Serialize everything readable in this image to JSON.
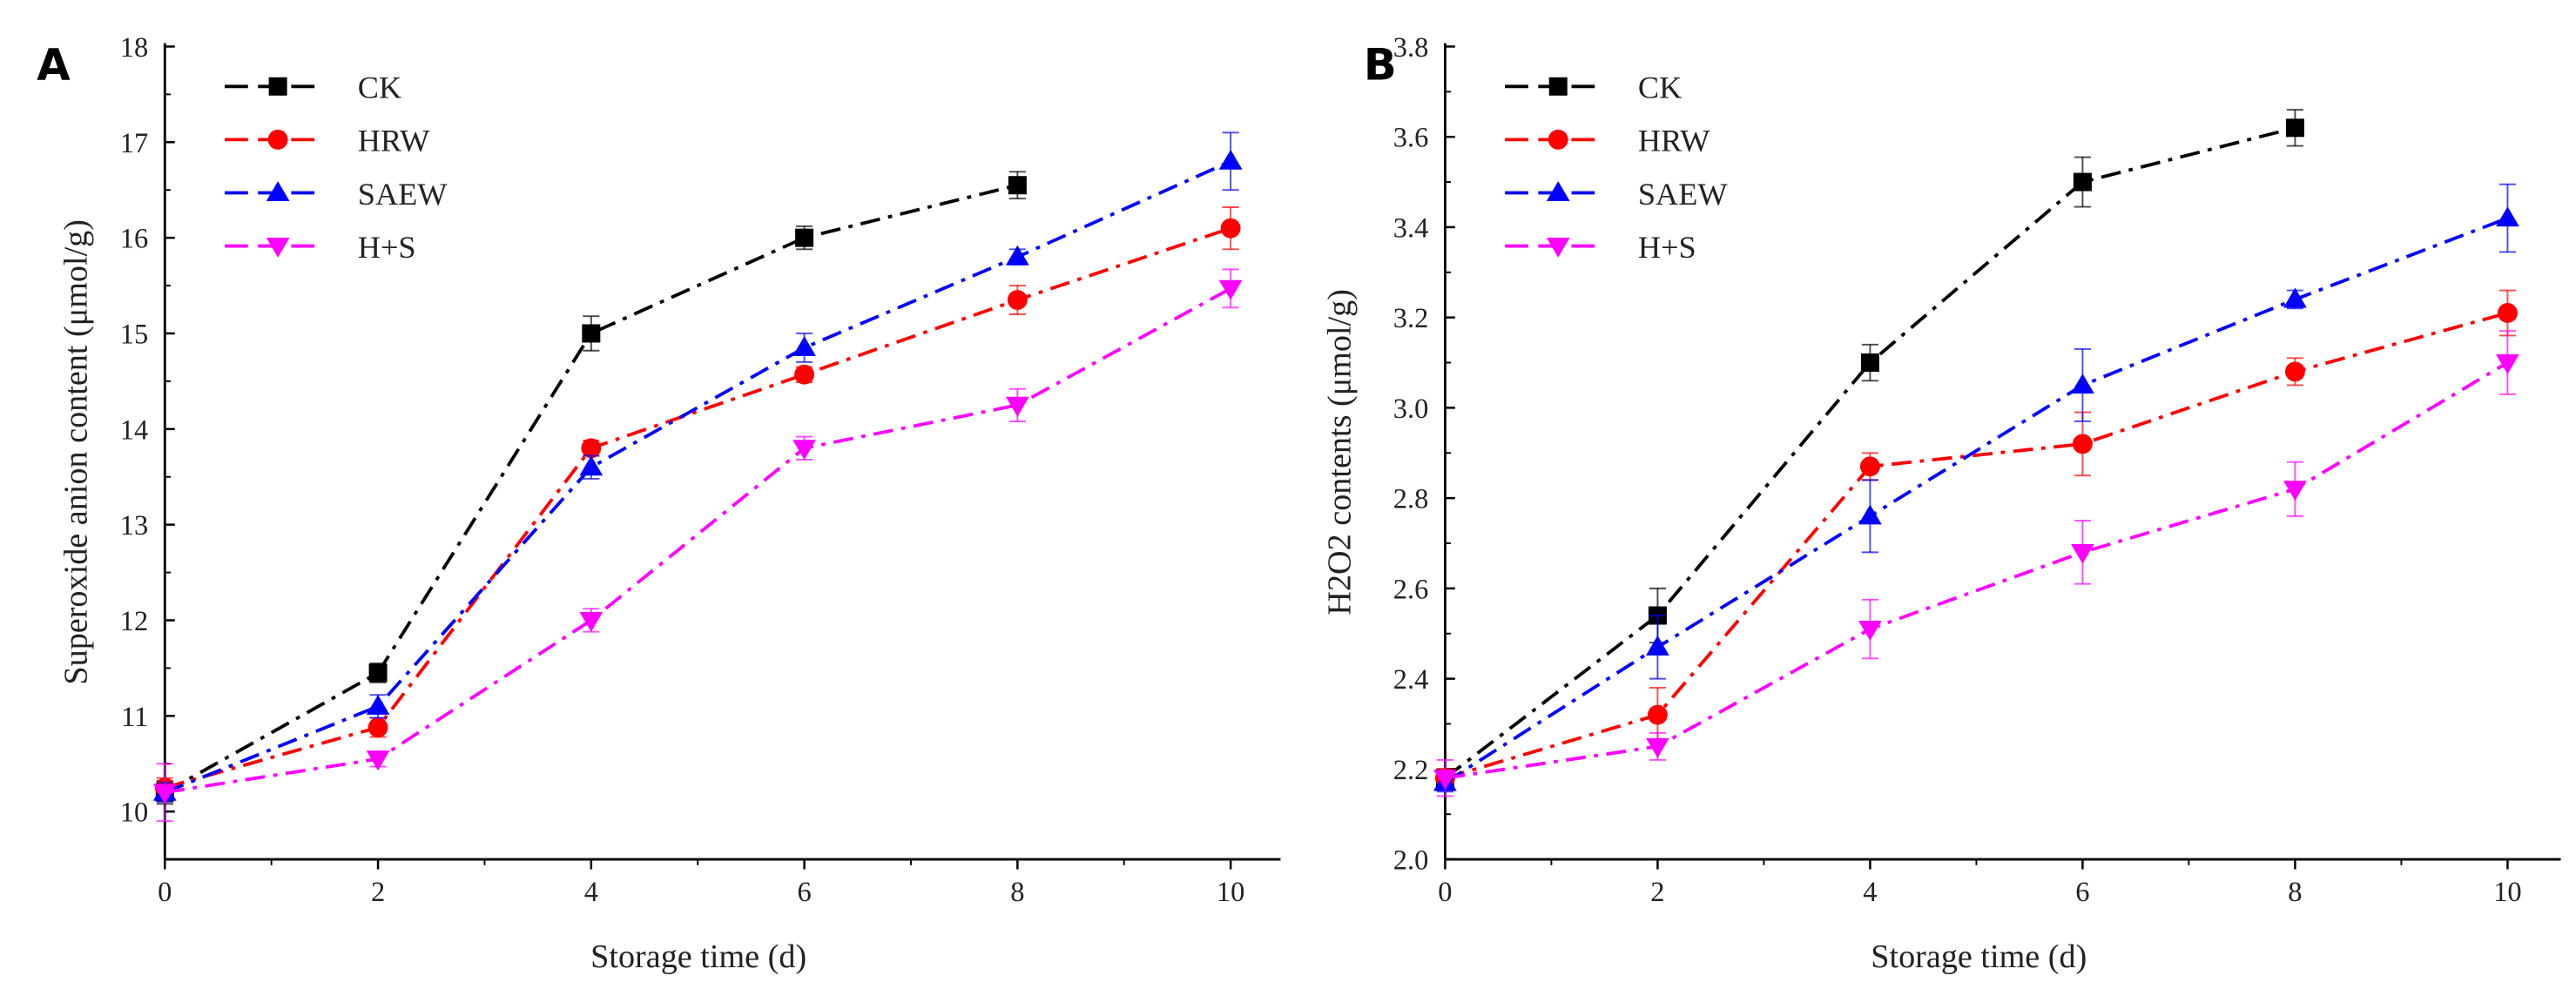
{
  "chart_data": [
    {
      "type": "line",
      "panel": "A",
      "xlabel": "Storage time (d)",
      "ylabel": "Superoxide anion content (μmol/g)",
      "xlim": [
        0,
        10.5
      ],
      "ylim": [
        9.5,
        18
      ],
      "xticks": [
        0,
        2,
        4,
        6,
        8,
        10
      ],
      "yticks": [
        10,
        11,
        12,
        13,
        14,
        15,
        16,
        17,
        18
      ],
      "legend_position": "top-left",
      "grid": false,
      "series": [
        {
          "name": "CK",
          "color": "#000000",
          "marker": "square",
          "x": [
            0,
            2,
            4,
            6,
            8
          ],
          "values": [
            10.2,
            11.45,
            15.0,
            16.0,
            16.55
          ],
          "err": [
            0.12,
            0.1,
            0.18,
            0.12,
            0.14
          ]
        },
        {
          "name": "HRW",
          "color": "#ff0000",
          "marker": "circle",
          "x": [
            0,
            2,
            4,
            6,
            8,
            10
          ],
          "values": [
            10.25,
            10.88,
            13.8,
            14.57,
            15.35,
            16.1
          ],
          "err": [
            0.1,
            0.1,
            0.08,
            0.08,
            0.15,
            0.22
          ]
        },
        {
          "name": "SAEW",
          "color": "#0000ff",
          "marker": "triangle-up",
          "x": [
            0,
            2,
            4,
            6,
            8,
            10
          ],
          "values": [
            10.2,
            11.1,
            13.6,
            14.85,
            15.8,
            16.8
          ],
          "err": [
            0.1,
            0.12,
            0.12,
            0.15,
            0.08,
            0.3
          ]
        },
        {
          "name": "H+S",
          "color": "#ff00ff",
          "marker": "triangle-down",
          "x": [
            0,
            2,
            4,
            6,
            8,
            10
          ],
          "values": [
            10.2,
            10.55,
            12.0,
            13.8,
            14.25,
            15.47
          ],
          "err": [
            0.3,
            0.08,
            0.12,
            0.12,
            0.17,
            0.2
          ]
        }
      ]
    },
    {
      "type": "line",
      "panel": "B",
      "xlabel": "Storage time (d)",
      "ylabel": "H2O2 contents (μmol/g)",
      "xlim": [
        0,
        10.5
      ],
      "ylim": [
        2.0,
        3.8
      ],
      "xticks": [
        0,
        2,
        4,
        6,
        8,
        10
      ],
      "yticks": [
        2.0,
        2.2,
        2.4,
        2.6,
        2.8,
        3.0,
        3.2,
        3.4,
        3.6,
        3.8
      ],
      "legend_position": "top-left",
      "grid": false,
      "series": [
        {
          "name": "CK",
          "color": "#000000",
          "marker": "square",
          "x": [
            0,
            2,
            4,
            6,
            8
          ],
          "values": [
            2.18,
            2.54,
            3.1,
            3.5,
            3.62
          ],
          "err": [
            0.02,
            0.06,
            0.04,
            0.055,
            0.04
          ]
        },
        {
          "name": "HRW",
          "color": "#ff0000",
          "marker": "circle",
          "x": [
            0,
            2,
            4,
            6,
            8,
            10
          ],
          "values": [
            2.18,
            2.32,
            2.87,
            2.92,
            3.08,
            3.21
          ],
          "err": [
            0.02,
            0.06,
            0.03,
            0.07,
            0.03,
            0.05
          ]
        },
        {
          "name": "SAEW",
          "color": "#0000ff",
          "marker": "triangle-up",
          "x": [
            0,
            2,
            4,
            6,
            8,
            10
          ],
          "values": [
            2.17,
            2.47,
            2.76,
            3.05,
            3.24,
            3.42
          ],
          "err": [
            0.02,
            0.07,
            0.08,
            0.08,
            0.02,
            0.075
          ]
        },
        {
          "name": "H+S",
          "color": "#ff00ff",
          "marker": "triangle-down",
          "x": [
            0,
            2,
            4,
            6,
            8,
            10
          ],
          "values": [
            2.18,
            2.25,
            2.51,
            2.68,
            2.82,
            3.1
          ],
          "err": [
            0.04,
            0.03,
            0.065,
            0.07,
            0.06,
            0.07
          ]
        }
      ]
    }
  ]
}
